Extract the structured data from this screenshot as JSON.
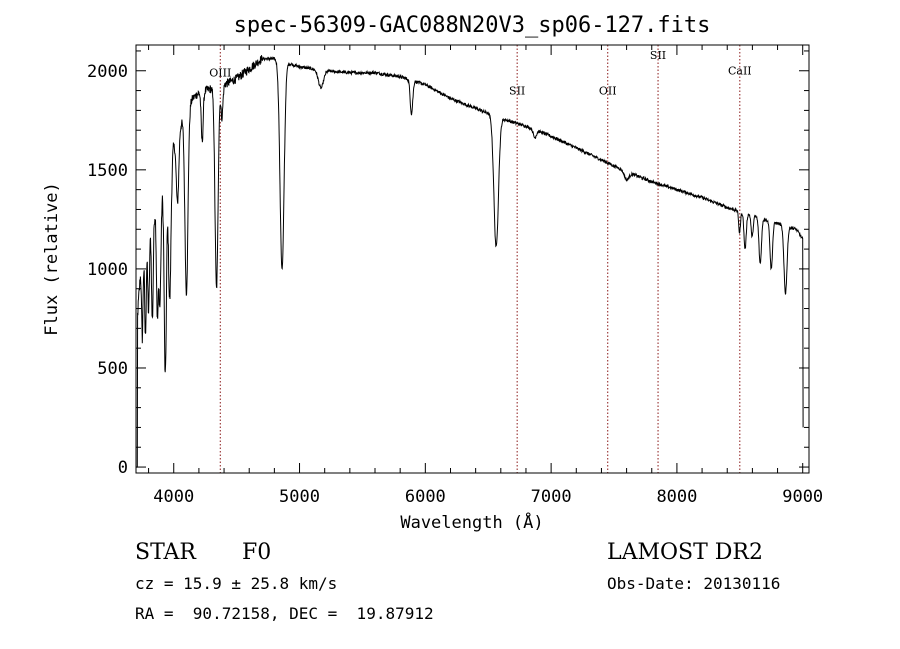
{
  "chart_data": {
    "type": "line",
    "title": "spec-56309-GAC088N20V3_sp06-127.fits",
    "xlabel": "Wavelength (Å)",
    "ylabel": "Flux (relative)",
    "xlim": [
      3700,
      9050
    ],
    "ylim": [
      -30,
      2130
    ],
    "xticks": [
      4000,
      5000,
      6000,
      7000,
      8000,
      9000
    ],
    "xtick_labels": [
      "4000",
      "5000",
      "6000",
      "7000",
      "8000",
      "9000"
    ],
    "yticks": [
      0,
      500,
      1000,
      1500,
      2000
    ],
    "ytick_labels": [
      "0",
      "500",
      "1000",
      "1500",
      "2000"
    ],
    "continuum": [
      [
        3700,
        650
      ],
      [
        3740,
        1020
      ],
      [
        3780,
        1150
      ],
      [
        3820,
        1250
      ],
      [
        3860,
        1300
      ],
      [
        3900,
        1380
      ],
      [
        3950,
        1500
      ],
      [
        4000,
        1620
      ],
      [
        4050,
        1720
      ],
      [
        4100,
        1800
      ],
      [
        4150,
        1860
      ],
      [
        4200,
        1890
      ],
      [
        4300,
        1910
      ],
      [
        4400,
        1930
      ],
      [
        4500,
        1960
      ],
      [
        4600,
        2010
      ],
      [
        4700,
        2060
      ],
      [
        4800,
        2060
      ],
      [
        5000,
        2020
      ],
      [
        5200,
        2000
      ],
      [
        5400,
        1990
      ],
      [
        5600,
        1990
      ],
      [
        5800,
        1970
      ],
      [
        6000,
        1930
      ],
      [
        6200,
        1860
      ],
      [
        6400,
        1810
      ],
      [
        6600,
        1760
      ],
      [
        6800,
        1720
      ],
      [
        7000,
        1670
      ],
      [
        7200,
        1610
      ],
      [
        7400,
        1550
      ],
      [
        7600,
        1490
      ],
      [
        7800,
        1440
      ],
      [
        8000,
        1400
      ],
      [
        8200,
        1360
      ],
      [
        8400,
        1310
      ],
      [
        8600,
        1270
      ],
      [
        8800,
        1230
      ],
      [
        8950,
        1200
      ],
      [
        9000,
        1150
      ]
    ],
    "absorption_features": [
      {
        "x": 3750,
        "depth": 400,
        "width": 6
      },
      {
        "x": 3775,
        "depth": 480,
        "width": 6
      },
      {
        "x": 3800,
        "depth": 420,
        "width": 7
      },
      {
        "x": 3830,
        "depth": 520,
        "width": 7
      },
      {
        "x": 3870,
        "depth": 560,
        "width": 7
      },
      {
        "x": 3890,
        "depth": 540,
        "width": 8
      },
      {
        "x": 3933,
        "depth": 1000,
        "width": 9
      },
      {
        "x": 3968,
        "depth": 700,
        "width": 10
      },
      {
        "x": 4030,
        "depth": 350,
        "width": 10
      },
      {
        "x": 4101,
        "depth": 920,
        "width": 12
      },
      {
        "x": 4226,
        "depth": 250,
        "width": 8
      },
      {
        "x": 4340,
        "depth": 1020,
        "width": 12
      },
      {
        "x": 4383,
        "depth": 160,
        "width": 8
      },
      {
        "x": 4861,
        "depth": 1050,
        "width": 16
      },
      {
        "x": 5170,
        "depth": 90,
        "width": 20
      },
      {
        "x": 5890,
        "depth": 170,
        "width": 10
      },
      {
        "x": 6563,
        "depth": 660,
        "width": 18
      },
      {
        "x": 6870,
        "depth": 40,
        "width": 12
      },
      {
        "x": 7600,
        "depth": 40,
        "width": 18
      },
      {
        "x": 8498,
        "depth": 110,
        "width": 7
      },
      {
        "x": 8542,
        "depth": 180,
        "width": 9
      },
      {
        "x": 8598,
        "depth": 110,
        "width": 8
      },
      {
        "x": 8662,
        "depth": 230,
        "width": 10
      },
      {
        "x": 8750,
        "depth": 240,
        "width": 10
      },
      {
        "x": 8863,
        "depth": 340,
        "width": 12
      }
    ],
    "line_markers": [
      {
        "label": "OIII",
        "x": 4370,
        "label_y": 1970
      },
      {
        "label": "SII",
        "x": 6730,
        "label_y": 1880
      },
      {
        "label": "OII",
        "x": 7450,
        "label_y": 1880
      },
      {
        "label": "SII",
        "x": 7850,
        "label_y": 2060
      },
      {
        "label": "CaII",
        "x": 8500,
        "label_y": 1980
      }
    ],
    "marker_color": "#8b1a1a"
  },
  "info": {
    "object_type": "STAR",
    "subclass": "F0",
    "survey": "LAMOST DR2",
    "cz": "cz = 15.9 ± 25.8 km/s",
    "obs_date": "Obs-Date: 20130116",
    "coords": "RA =  90.72158, DEC =  19.87912"
  }
}
